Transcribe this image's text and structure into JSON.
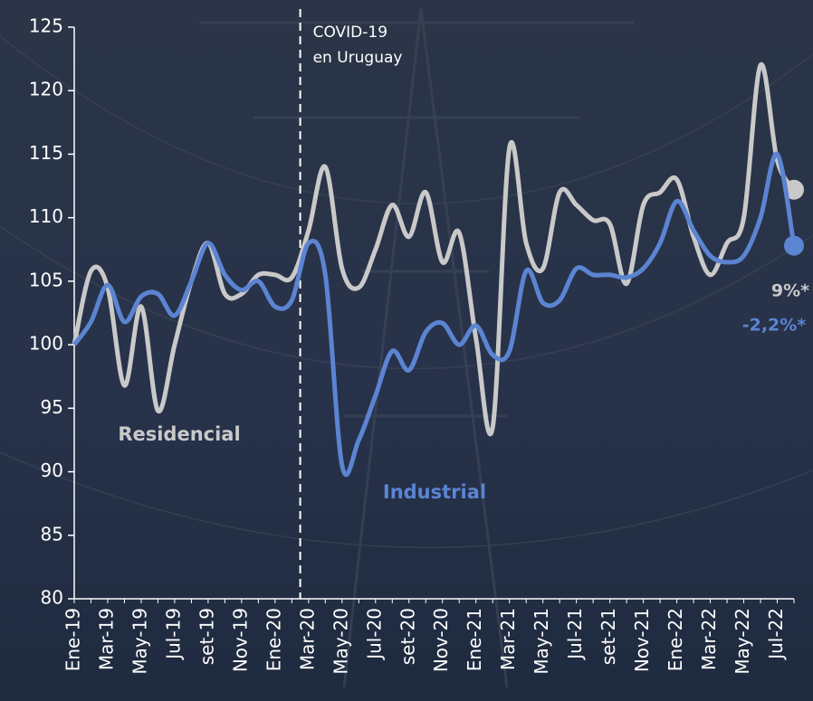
{
  "chart_data": {
    "type": "line",
    "categories": [
      "Ene-19",
      null,
      "Mar-19",
      null,
      "May-19",
      null,
      "Jul-19",
      null,
      "set-19",
      null,
      "Nov-19",
      null,
      "Ene-20",
      null,
      "Mar-20",
      null,
      "May-20",
      null,
      "Jul-20",
      null,
      "set-20",
      null,
      "Nov-20",
      null,
      "Ene-21",
      null,
      "Mar-21",
      null,
      "May-21",
      null,
      "Jul-21",
      null,
      "set-21",
      null,
      "Nov-21",
      null,
      "Ene-22",
      null,
      "Mar-22",
      null,
      "May-22",
      null,
      "Jul-22",
      null
    ],
    "series": [
      {
        "name": "Residencial",
        "color": "#c9c9c9",
        "end_label": "9%*",
        "values": [
          100,
          105.8,
          104.5,
          96.8,
          103,
          94.8,
          100,
          105,
          108,
          104,
          104,
          105.5,
          105.5,
          105.3,
          109,
          114,
          106,
          104.5,
          107.5,
          111,
          108.5,
          112,
          106.5,
          108.8,
          100.5,
          93.5,
          115.5,
          108,
          106,
          112,
          111,
          109.8,
          109.5,
          104.8,
          111,
          112,
          113,
          108.5,
          105.5,
          108,
          110,
          122,
          114.5,
          112.2
        ]
      },
      {
        "name": "Industrial",
        "color": "#5b84d2",
        "end_label": "-2,2%*",
        "values": [
          100,
          101.8,
          104.7,
          101.8,
          103.8,
          104,
          102.3,
          105,
          108,
          105.5,
          104.3,
          105,
          103,
          103.5,
          108,
          105.5,
          90.5,
          92.5,
          96,
          99.5,
          98,
          101,
          101.7,
          100,
          101.5,
          99.2,
          99.5,
          105.8,
          103.3,
          103.5,
          106,
          105.5,
          105.5,
          105.3,
          106,
          108,
          111.3,
          109,
          107,
          106.5,
          107,
          110,
          115,
          107.8
        ]
      }
    ],
    "annotations": [
      "COVID-19",
      "en Uruguay"
    ],
    "ylim": [
      80,
      125
    ],
    "yticks": [
      80,
      85,
      90,
      95,
      100,
      105,
      110,
      115,
      120,
      125
    ],
    "grid": false
  }
}
